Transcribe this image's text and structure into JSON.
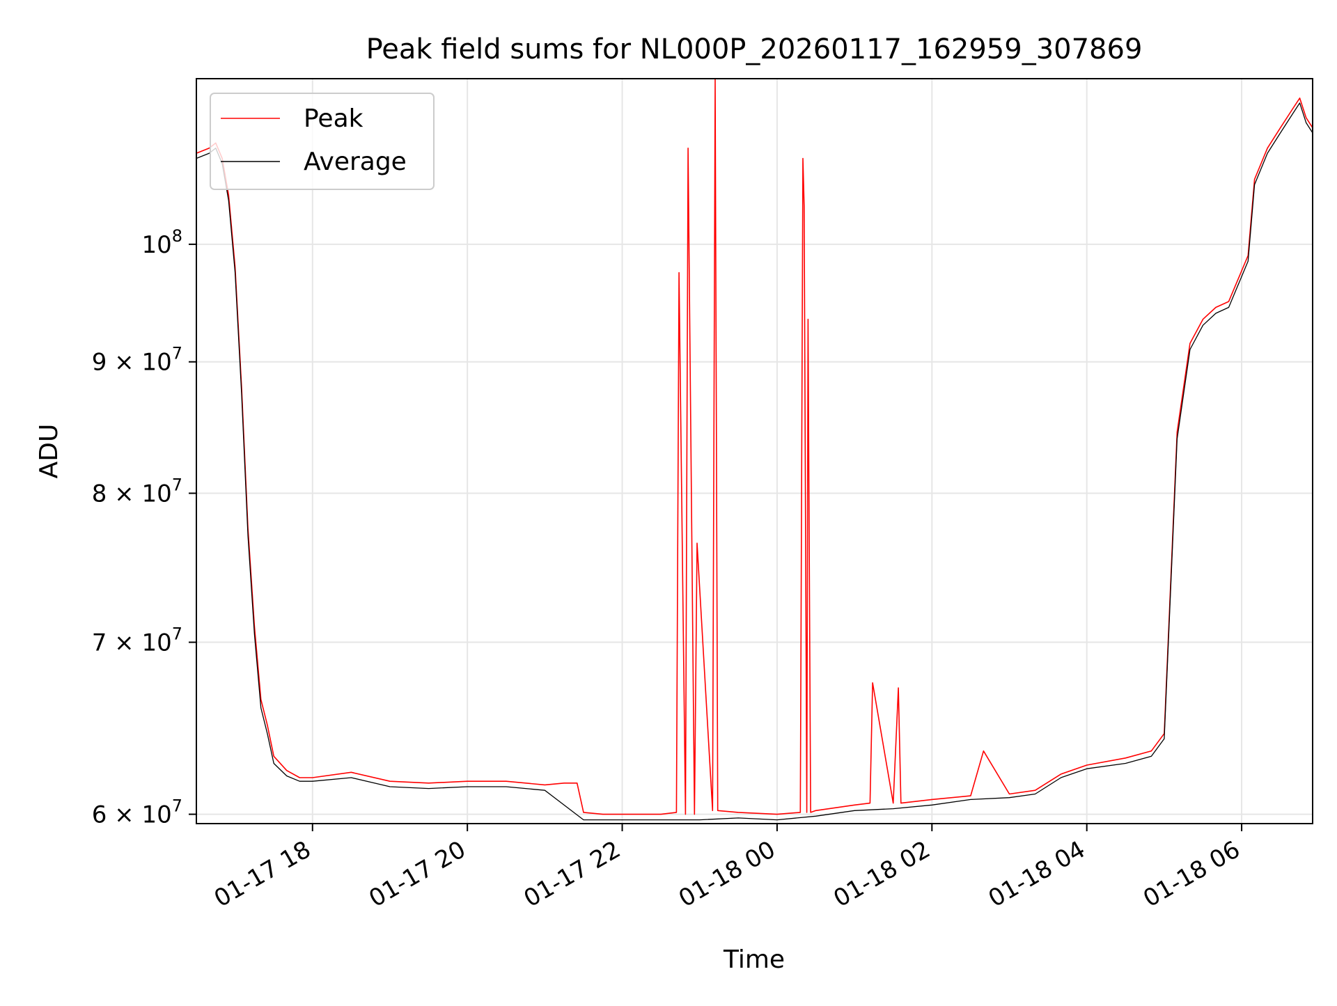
{
  "chart_data": {
    "type": "line",
    "title": "Peak field sums for NL000P_20260117_162959_307869",
    "xlabel": "Time",
    "ylabel": "ADU",
    "yscale": "log",
    "grid": true,
    "legend_position": "top-left",
    "xlim": [
      "2026-01-17 16:30",
      "2026-01-18 06:55"
    ],
    "ylim": [
      59500000,
      116000000
    ],
    "x_ticks": [
      {
        "value": "2026-01-17 18:00",
        "label": "01-17 18"
      },
      {
        "value": "2026-01-17 20:00",
        "label": "01-17 20"
      },
      {
        "value": "2026-01-17 22:00",
        "label": "01-17 22"
      },
      {
        "value": "2026-01-18 00:00",
        "label": "01-18 00"
      },
      {
        "value": "2026-01-18 02:00",
        "label": "01-18 02"
      },
      {
        "value": "2026-01-18 04:00",
        "label": "01-18 04"
      },
      {
        "value": "2026-01-18 06:00",
        "label": "01-18 06"
      }
    ],
    "y_ticks": [
      {
        "value": 60000000,
        "mantissa": "6",
        "base": "10",
        "exp": "7"
      },
      {
        "value": 70000000,
        "mantissa": "7",
        "base": "10",
        "exp": "7"
      },
      {
        "value": 80000000,
        "mantissa": "8",
        "base": "10",
        "exp": "7"
      },
      {
        "value": 90000000,
        "mantissa": "9",
        "base": "10",
        "exp": "7"
      },
      {
        "value": 100000000,
        "mantissa": "",
        "base": "10",
        "exp": "8"
      }
    ],
    "series": [
      {
        "name": "Peak",
        "color": "#ff0000",
        "x": [
          "2026-01-17 16:30",
          "2026-01-17 16:40",
          "2026-01-17 16:45",
          "2026-01-17 16:50",
          "2026-01-17 16:55",
          "2026-01-17 17:00",
          "2026-01-17 17:05",
          "2026-01-17 17:10",
          "2026-01-17 17:15",
          "2026-01-17 17:20",
          "2026-01-17 17:25",
          "2026-01-17 17:30",
          "2026-01-17 17:40",
          "2026-01-17 17:50",
          "2026-01-17 18:00",
          "2026-01-17 18:30",
          "2026-01-17 19:00",
          "2026-01-17 19:30",
          "2026-01-17 20:00",
          "2026-01-17 20:30",
          "2026-01-17 21:00",
          "2026-01-17 21:15",
          "2026-01-17 21:25",
          "2026-01-17 21:30",
          "2026-01-17 21:45",
          "2026-01-17 22:00",
          "2026-01-17 22:30",
          "2026-01-17 22:42",
          "2026-01-17 22:44",
          "2026-01-17 22:49",
          "2026-01-17 22:51",
          "2026-01-17 22:56",
          "2026-01-17 22:58",
          "2026-01-17 23:10",
          "2026-01-17 23:12",
          "2026-01-17 23:14",
          "2026-01-17 23:30",
          "2026-01-18 00:00",
          "2026-01-18 00:18",
          "2026-01-18 00:20",
          "2026-01-18 00:21",
          "2026-01-18 00:23",
          "2026-01-18 00:24",
          "2026-01-18 00:26",
          "2026-01-18 00:30",
          "2026-01-18 01:00",
          "2026-01-18 01:12",
          "2026-01-18 01:14",
          "2026-01-18 01:30",
          "2026-01-18 01:34",
          "2026-01-18 01:36",
          "2026-01-18 02:00",
          "2026-01-18 02:30",
          "2026-01-18 02:40",
          "2026-01-18 03:00",
          "2026-01-18 03:20",
          "2026-01-18 03:40",
          "2026-01-18 04:00",
          "2026-01-18 04:30",
          "2026-01-18 04:50",
          "2026-01-18 05:00",
          "2026-01-18 05:10",
          "2026-01-18 05:20",
          "2026-01-18 05:30",
          "2026-01-18 05:40",
          "2026-01-18 05:50",
          "2026-01-18 06:05",
          "2026-01-18 06:10",
          "2026-01-18 06:20",
          "2026-01-18 06:30",
          "2026-01-18 06:40",
          "2026-01-18 06:45",
          "2026-01-18 06:50",
          "2026-01-18 06:55"
        ],
        "y": [
          108500000,
          109000000,
          109500000,
          108000000,
          104500000,
          98000000,
          88000000,
          77500000,
          71000000,
          66500000,
          65000000,
          63200000,
          62400000,
          62000000,
          62000000,
          62300000,
          61800000,
          61700000,
          61800000,
          61800000,
          61600000,
          61700000,
          61700000,
          60100000,
          60000000,
          60000000,
          60000000,
          60100000,
          97500000,
          60000000,
          109000000,
          60000000,
          76500000,
          60200000,
          116000000,
          60200000,
          60100000,
          60000000,
          60100000,
          108000000,
          103500000,
          60100000,
          93500000,
          60100000,
          60200000,
          60500000,
          60600000,
          67500000,
          60600000,
          67200000,
          60600000,
          60800000,
          61000000,
          63500000,
          61100000,
          61300000,
          62200000,
          62700000,
          63100000,
          63500000,
          64500000,
          84500000,
          91500000,
          93500000,
          94500000,
          95000000,
          99000000,
          106000000,
          109000000,
          111000000,
          113000000,
          114000000,
          112000000,
          111000000
        ]
      },
      {
        "name": "Average",
        "color": "#000000",
        "x": [
          "2026-01-17 16:30",
          "2026-01-17 16:40",
          "2026-01-17 16:45",
          "2026-01-17 16:50",
          "2026-01-17 16:55",
          "2026-01-17 17:00",
          "2026-01-17 17:05",
          "2026-01-17 17:10",
          "2026-01-17 17:15",
          "2026-01-17 17:20",
          "2026-01-17 17:25",
          "2026-01-17 17:30",
          "2026-01-17 17:40",
          "2026-01-17 17:50",
          "2026-01-17 18:00",
          "2026-01-17 18:30",
          "2026-01-17 19:00",
          "2026-01-17 19:30",
          "2026-01-17 20:00",
          "2026-01-17 20:30",
          "2026-01-17 21:00",
          "2026-01-17 21:30",
          "2026-01-17 22:00",
          "2026-01-17 22:30",
          "2026-01-17 23:00",
          "2026-01-17 23:30",
          "2026-01-18 00:00",
          "2026-01-18 00:30",
          "2026-01-18 01:00",
          "2026-01-18 01:30",
          "2026-01-18 02:00",
          "2026-01-18 02:30",
          "2026-01-18 03:00",
          "2026-01-18 03:20",
          "2026-01-18 03:40",
          "2026-01-18 04:00",
          "2026-01-18 04:30",
          "2026-01-18 04:50",
          "2026-01-18 05:00",
          "2026-01-18 05:10",
          "2026-01-18 05:20",
          "2026-01-18 05:30",
          "2026-01-18 05:40",
          "2026-01-18 05:50",
          "2026-01-18 06:05",
          "2026-01-18 06:10",
          "2026-01-18 06:20",
          "2026-01-18 06:30",
          "2026-01-18 06:40",
          "2026-01-18 06:45",
          "2026-01-18 06:50",
          "2026-01-18 06:55"
        ],
        "y": [
          108000000,
          108500000,
          109000000,
          107500000,
          104000000,
          97500000,
          87500000,
          77000000,
          70500000,
          66000000,
          64500000,
          62800000,
          62100000,
          61800000,
          61800000,
          62000000,
          61500000,
          61400000,
          61500000,
          61500000,
          61300000,
          59700000,
          59700000,
          59700000,
          59700000,
          59800000,
          59700000,
          59900000,
          60200000,
          60300000,
          60500000,
          60800000,
          60900000,
          61100000,
          62000000,
          62500000,
          62800000,
          63200000,
          64200000,
          84000000,
          91000000,
          93000000,
          94000000,
          94500000,
          98500000,
          105500000,
          108500000,
          110500000,
          112500000,
          113500000,
          111500000,
          110500000
        ]
      }
    ]
  }
}
